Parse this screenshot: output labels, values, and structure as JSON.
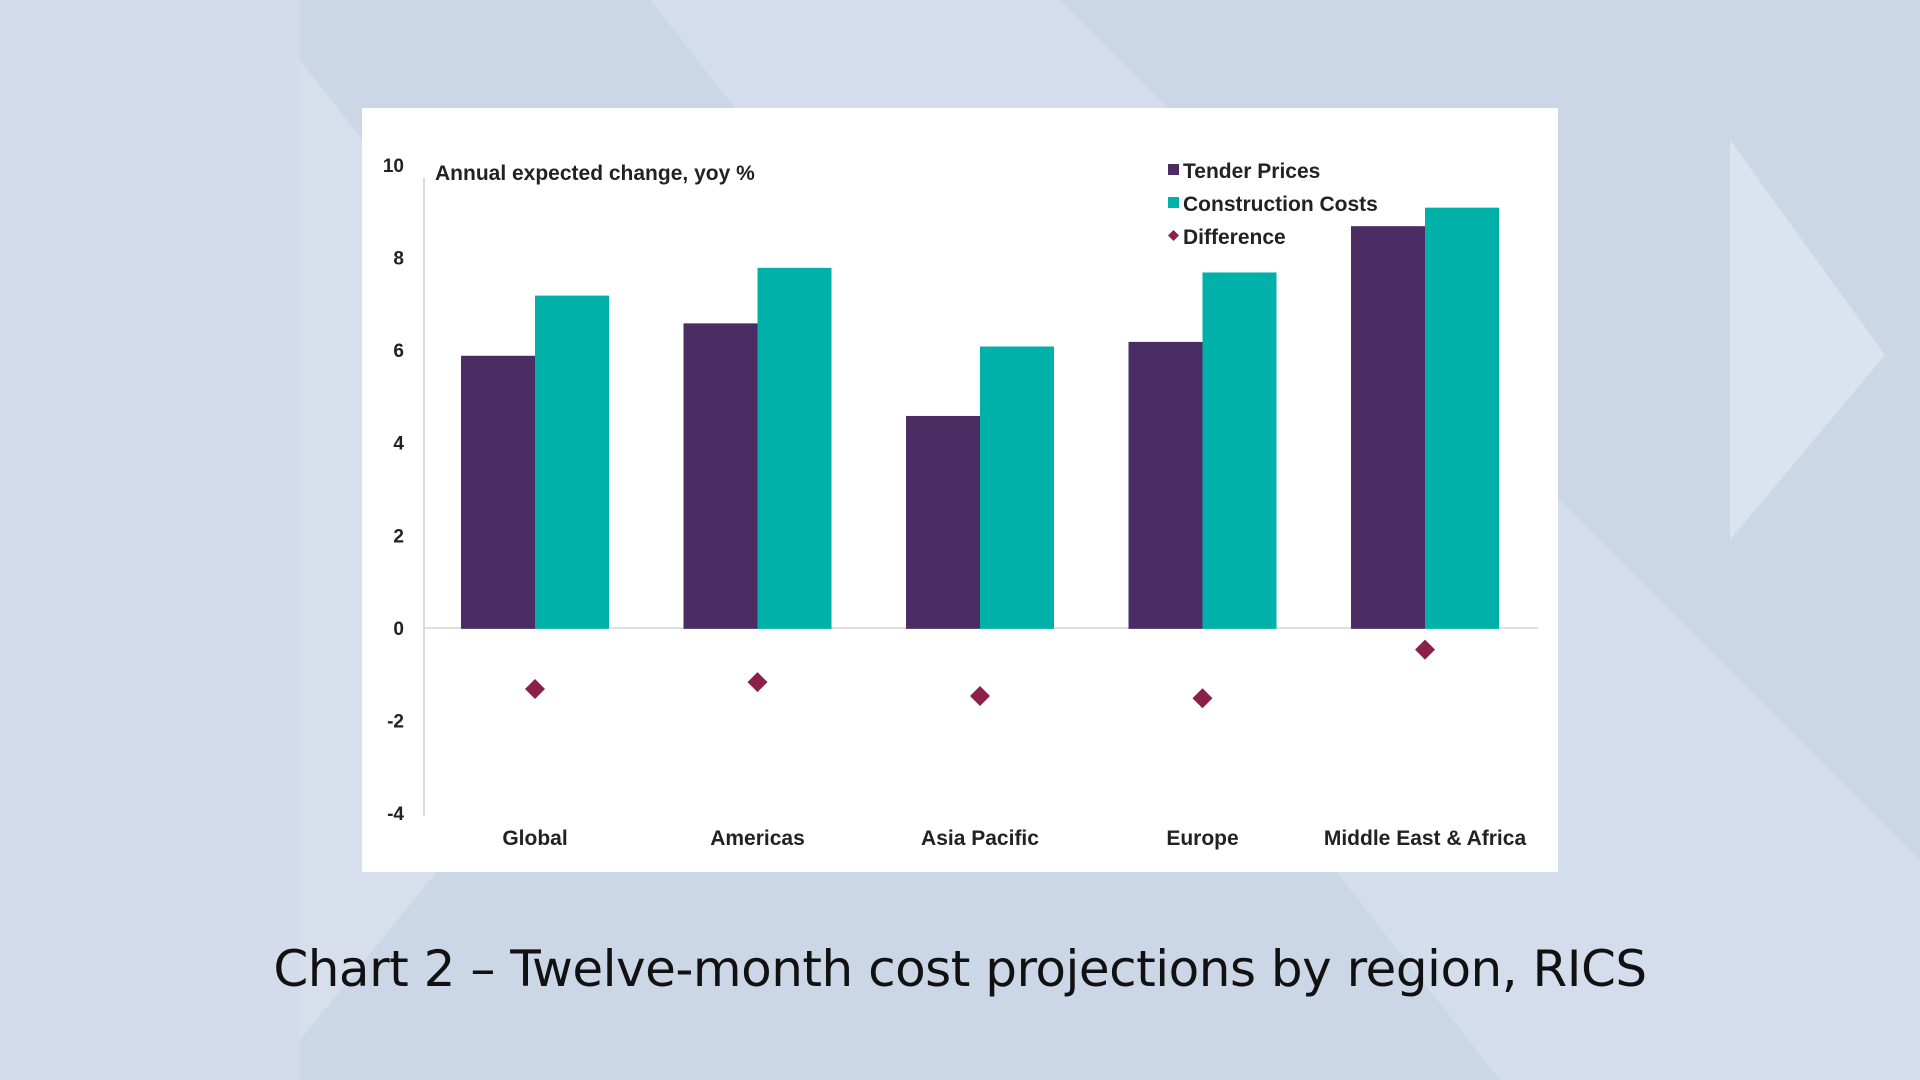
{
  "caption": "Chart 2 – Twelve-month cost projections by region, RICS",
  "colors": {
    "background": "#cdd8e8",
    "tender": "#4b2d63",
    "construction": "#00b1a9",
    "difference": "#8b2048"
  },
  "chart_data": {
    "type": "bar",
    "title": "",
    "annotation": "Annual expected change, yoy %",
    "categories": [
      "Global",
      "Americas",
      "Asia Pacific",
      "Europe",
      "Middle East & Africa"
    ],
    "series": [
      {
        "name": "Tender Prices",
        "type": "bar",
        "values": [
          5.9,
          6.6,
          4.6,
          6.2,
          8.7
        ]
      },
      {
        "name": "Construction Costs",
        "type": "bar",
        "values": [
          7.2,
          7.8,
          6.1,
          7.7,
          9.1
        ]
      },
      {
        "name": "Difference",
        "type": "scatter",
        "marker": "diamond",
        "values": [
          -1.3,
          -1.15,
          -1.45,
          -1.5,
          -0.45
        ]
      }
    ],
    "ylim": [
      -4,
      10
    ],
    "yticks": [
      "10",
      "8",
      "6",
      "4",
      "2",
      "0",
      "-2",
      "-4"
    ],
    "legend_position": "top-right",
    "grid": false
  }
}
